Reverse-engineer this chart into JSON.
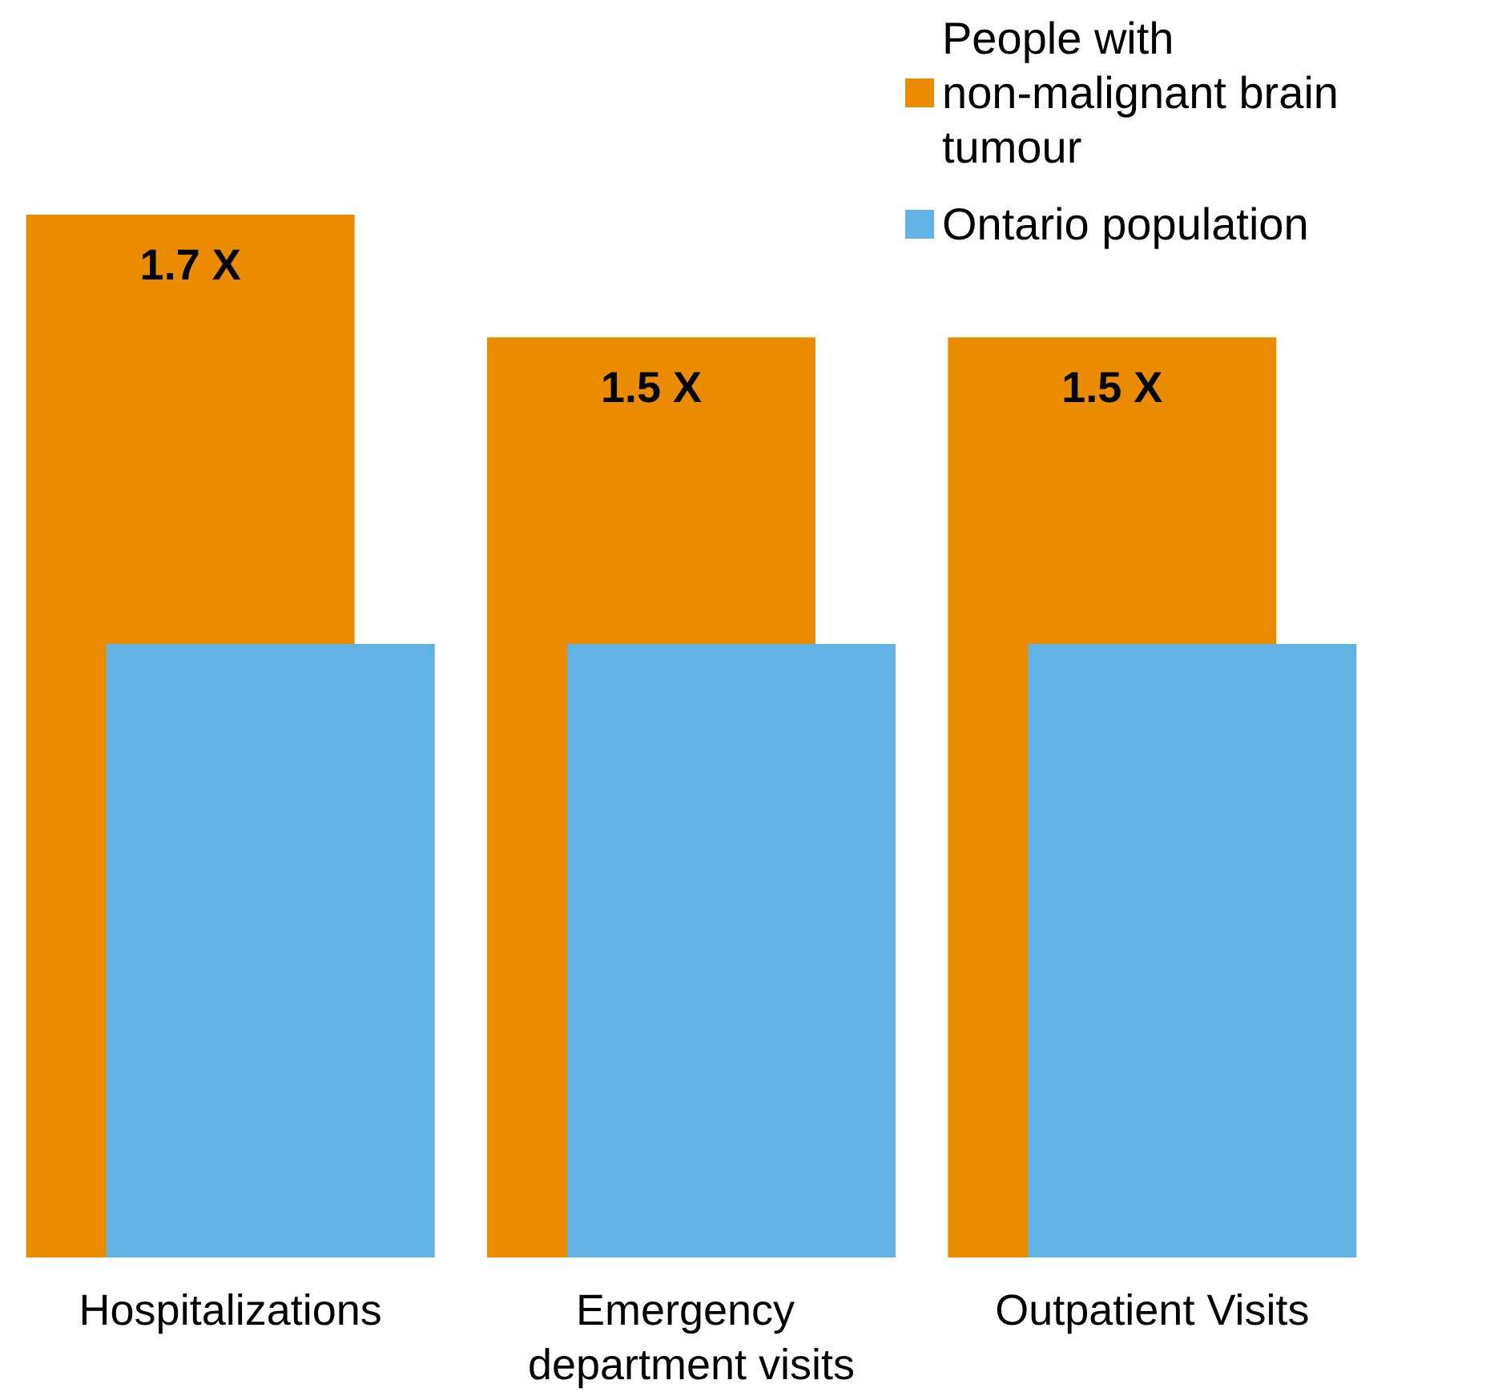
{
  "chart_data": {
    "type": "bar",
    "categories": [
      "Hospitalizations",
      "Emergency department visits",
      "Outpatient Visits"
    ],
    "series": [
      {
        "name": "People with non-malignant brain tumour",
        "color": "#eb8c00",
        "values": [
          1.7,
          1.5,
          1.5
        ],
        "value_labels": [
          "1.7 X",
          "1.5 X",
          "1.5 X"
        ]
      },
      {
        "name": "Ontario population",
        "color": "#62b3e4",
        "values": [
          1,
          1,
          1
        ]
      }
    ],
    "ylim": [
      0,
      1.7
    ],
    "tick_labels": "x",
    "legend": "top right"
  }
}
